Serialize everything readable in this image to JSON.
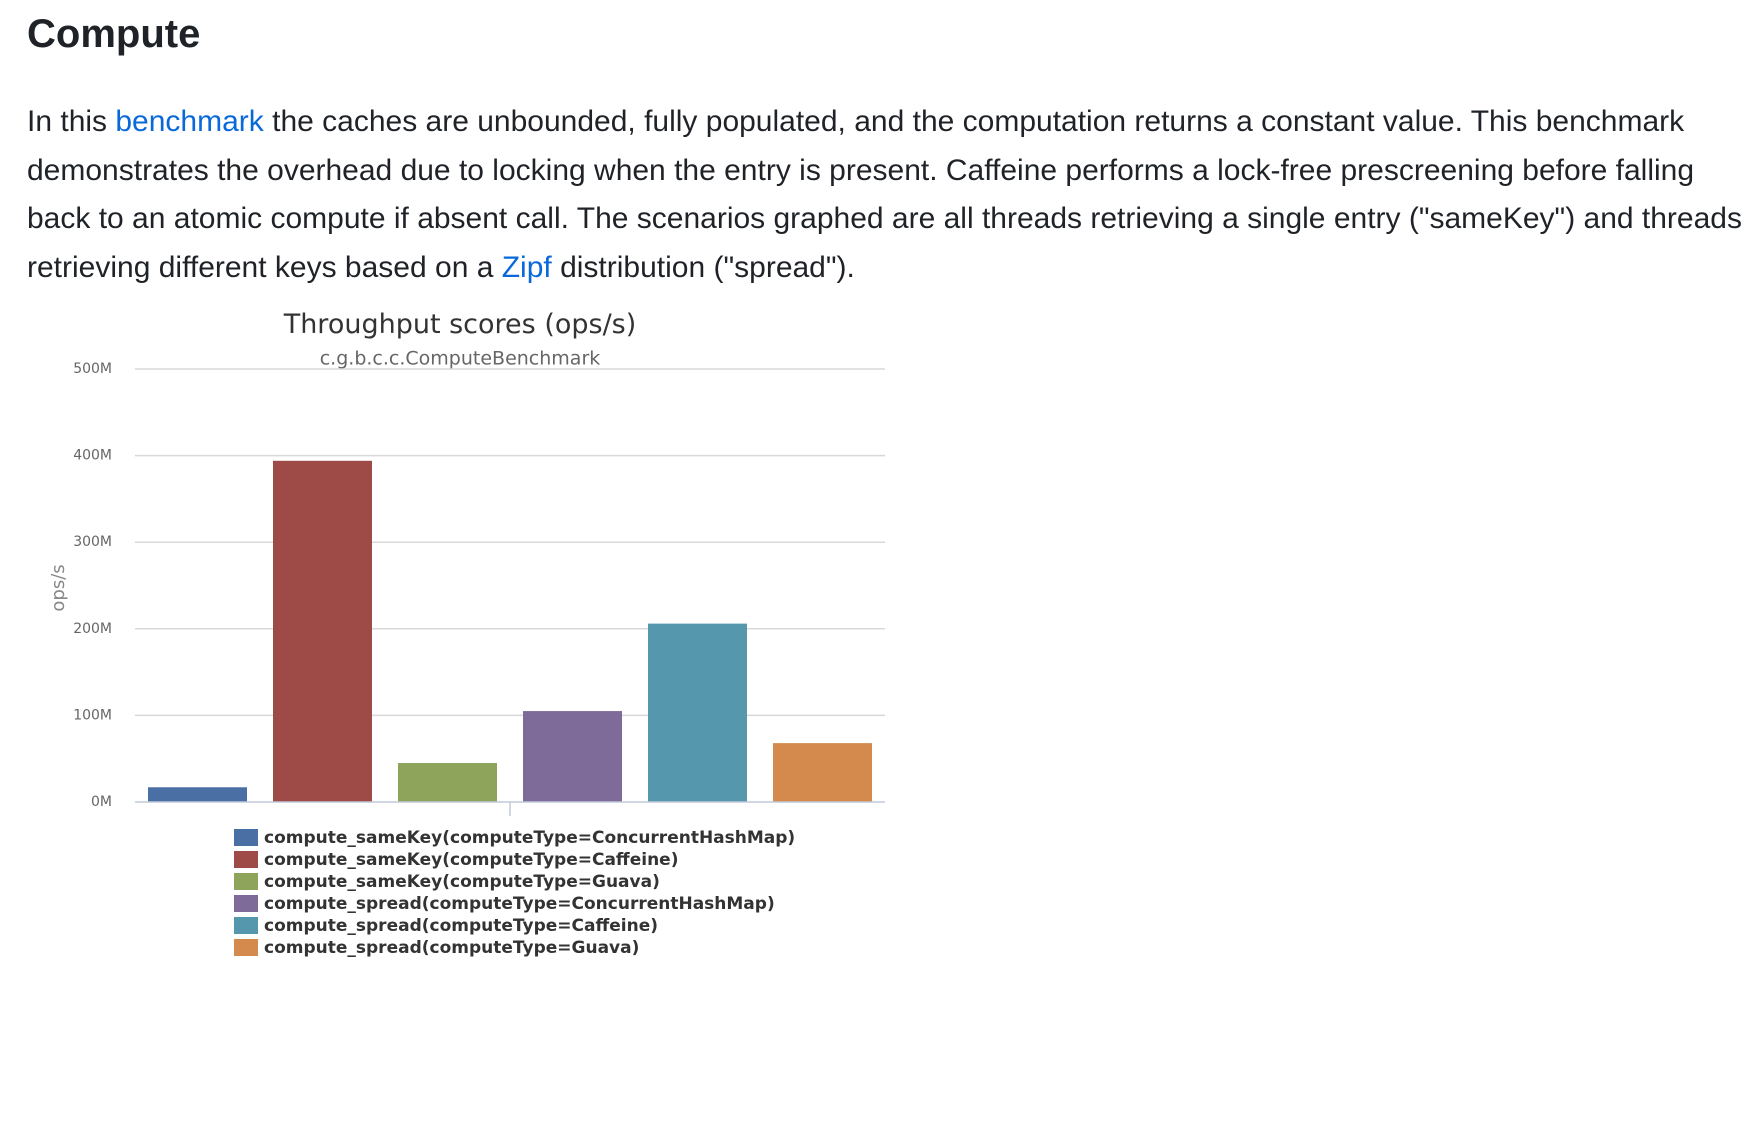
{
  "section": {
    "title": "Compute"
  },
  "intro": {
    "part1": "In this ",
    "link1": "benchmark",
    "part2": " the caches are unbounded, fully populated, and the computation returns a constant value. This benchmark demonstrates the overhead due to locking when the entry is present. Caffeine performs a lock-free prescreening before falling back to an atomic compute if absent call. The scenarios graphed are all threads retrieving a single entry (\"sameKey\") and threads retrieving different keys based on a ",
    "link2": "Zipf",
    "part3": " distribution (\"spread\")."
  },
  "chart_data": {
    "type": "bar",
    "title": "Throughput scores (ops/s)",
    "subtitle": "c.g.b.c.c.ComputeBenchmark",
    "xlabel": "",
    "ylabel": "ops/s",
    "ylim": [
      0,
      500000000
    ],
    "y_ticks": [
      {
        "value": 0,
        "label": "0M"
      },
      {
        "value": 100000000,
        "label": "100M"
      },
      {
        "value": 200000000,
        "label": "200M"
      },
      {
        "value": 300000000,
        "label": "300M"
      },
      {
        "value": 400000000,
        "label": "400M"
      },
      {
        "value": 500000000,
        "label": "500M"
      }
    ],
    "grid": true,
    "legend_position": "bottom",
    "series": [
      {
        "name": "compute_sameKey(computeType=ConcurrentHashMap)",
        "value": 17000000,
        "color": "#4a6fa5"
      },
      {
        "name": "compute_sameKey(computeType=Caffeine)",
        "value": 394000000,
        "color": "#9e4a47"
      },
      {
        "name": "compute_sameKey(computeType=Guava)",
        "value": 45000000,
        "color": "#8da45a"
      },
      {
        "name": "compute_spread(computeType=ConcurrentHashMap)",
        "value": 105000000,
        "color": "#7e6b9a"
      },
      {
        "name": "compute_spread(computeType=Caffeine)",
        "value": 206000000,
        "color": "#5598ae"
      },
      {
        "name": "compute_spread(computeType=Guava)",
        "value": 68000000,
        "color": "#d4894d"
      }
    ]
  }
}
